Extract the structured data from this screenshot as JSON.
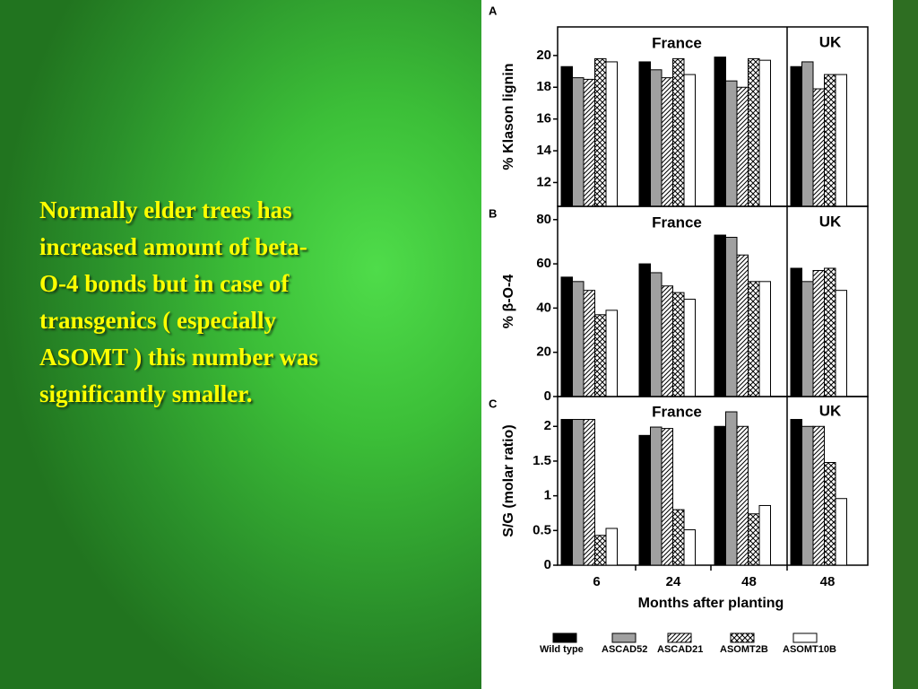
{
  "slide": {
    "text_lines": [
      "Normally elder trees has",
      "increased amount of beta-",
      "O-4 bonds but in case of",
      "transgenics ( especially",
      "ASOMT ) this number was",
      "significantly smaller."
    ]
  },
  "chart_data": [
    {
      "type": "bar",
      "panel": "A",
      "ylabel": "% Klason lignin",
      "groups": [
        "France",
        "UK"
      ],
      "categories": [
        null,
        null,
        null,
        null
      ],
      "ylim": [
        10.5,
        21.8
      ],
      "yticks": [
        12,
        14,
        16,
        18,
        20
      ],
      "series": [
        {
          "color": "#000000",
          "pattern": "solid",
          "values": [
            19.3,
            19.6,
            19.9,
            19.3
          ]
        },
        {
          "color": "#a0a0a0",
          "pattern": "solid",
          "values": [
            18.6,
            19.1,
            18.4,
            19.6
          ]
        },
        {
          "color": "#ffffff",
          "pattern": "hatch",
          "values": [
            18.5,
            18.6,
            18.0,
            17.9
          ]
        },
        {
          "color": "#ffffff",
          "pattern": "crosshatch",
          "values": [
            19.8,
            19.8,
            19.8,
            18.8
          ]
        },
        {
          "color": "#ffffff",
          "pattern": "solid",
          "values": [
            19.6,
            18.8,
            19.7,
            18.8
          ]
        }
      ]
    },
    {
      "type": "bar",
      "panel": "B",
      "ylabel": "% β-O-4",
      "groups": [
        "France",
        "UK"
      ],
      "categories": [
        null,
        null,
        null,
        null
      ],
      "ylim": [
        0,
        86
      ],
      "yticks": [
        0,
        20,
        40,
        60,
        80
      ],
      "series": [
        {
          "color": "#000000",
          "pattern": "solid",
          "values": [
            54,
            60,
            73,
            58
          ]
        },
        {
          "color": "#a0a0a0",
          "pattern": "solid",
          "values": [
            52,
            56,
            72,
            52
          ]
        },
        {
          "color": "#ffffff",
          "pattern": "hatch",
          "values": [
            48,
            50,
            64,
            57
          ]
        },
        {
          "color": "#ffffff",
          "pattern": "crosshatch",
          "values": [
            37,
            47,
            52,
            58
          ]
        },
        {
          "color": "#ffffff",
          "pattern": "solid",
          "values": [
            39,
            44,
            52,
            48
          ]
        }
      ]
    },
    {
      "type": "bar",
      "panel": "C",
      "ylabel": "S/G (molar ratio)",
      "groups": [
        "France",
        "UK"
      ],
      "categories": [
        "6",
        "24",
        "48",
        "48"
      ],
      "xlabel": "Months after planting",
      "ylim": [
        0,
        2.43
      ],
      "yticks": [
        0,
        0.5,
        1,
        1.5,
        2
      ],
      "series": [
        {
          "name": "Wild type",
          "color": "#000000",
          "pattern": "solid",
          "values": [
            2.1,
            1.87,
            2.0,
            2.1
          ]
        },
        {
          "name": "ASCAD52",
          "color": "#a0a0a0",
          "pattern": "solid",
          "values": [
            2.1,
            1.99,
            2.21,
            2.0
          ]
        },
        {
          "name": "ASCAD21",
          "color": "#ffffff",
          "pattern": "hatch",
          "values": [
            2.1,
            1.97,
            2.0,
            2.0
          ]
        },
        {
          "name": "ASOMT2B",
          "color": "#ffffff",
          "pattern": "crosshatch",
          "values": [
            0.43,
            0.8,
            0.74,
            1.48
          ]
        },
        {
          "name": "ASOMT10B",
          "color": "#ffffff",
          "pattern": "solid",
          "values": [
            0.53,
            0.51,
            0.86,
            0.96
          ]
        }
      ]
    }
  ]
}
